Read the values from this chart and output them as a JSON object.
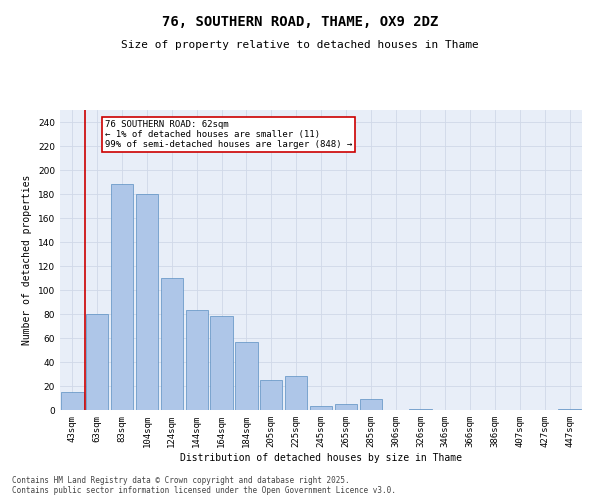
{
  "title": "76, SOUTHERN ROAD, THAME, OX9 2DZ",
  "subtitle": "Size of property relative to detached houses in Thame",
  "xlabel": "Distribution of detached houses by size in Thame",
  "ylabel": "Number of detached properties",
  "categories": [
    "43sqm",
    "63sqm",
    "83sqm",
    "104sqm",
    "124sqm",
    "144sqm",
    "164sqm",
    "184sqm",
    "205sqm",
    "225sqm",
    "245sqm",
    "265sqm",
    "285sqm",
    "306sqm",
    "326sqm",
    "346sqm",
    "366sqm",
    "386sqm",
    "407sqm",
    "427sqm",
    "447sqm"
  ],
  "values": [
    15,
    80,
    188,
    180,
    110,
    83,
    78,
    57,
    25,
    28,
    3,
    5,
    9,
    0,
    1,
    0,
    0,
    0,
    0,
    0,
    1
  ],
  "bar_color": "#aec6e8",
  "bar_edge_color": "#5a8fc2",
  "vline_color": "#cc0000",
  "ylim": [
    0,
    250
  ],
  "yticks": [
    0,
    20,
    40,
    60,
    80,
    100,
    120,
    140,
    160,
    180,
    200,
    220,
    240
  ],
  "grid_color": "#d0d8e8",
  "bg_color": "#e8eef8",
  "annotation_text": "76 SOUTHERN ROAD: 62sqm\n← 1% of detached houses are smaller (11)\n99% of semi-detached houses are larger (848) →",
  "annotation_box_edge_color": "#cc0000",
  "footer_text": "Contains HM Land Registry data © Crown copyright and database right 2025.\nContains public sector information licensed under the Open Government Licence v3.0.",
  "title_fontsize": 10,
  "subtitle_fontsize": 8,
  "axis_label_fontsize": 7,
  "tick_fontsize": 6.5,
  "annotation_fontsize": 6.5,
  "footer_fontsize": 5.5
}
